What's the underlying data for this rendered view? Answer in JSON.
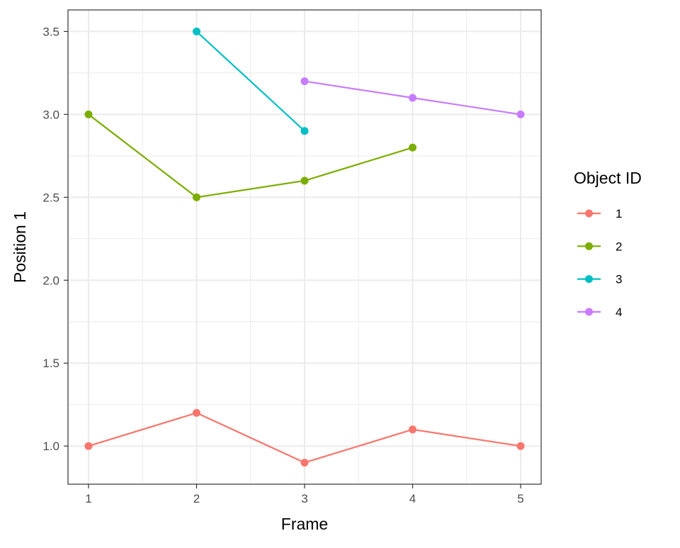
{
  "chart_data": {
    "type": "line",
    "xlabel": "Frame",
    "ylabel": "Position 1",
    "xlim": [
      0.81,
      5.19
    ],
    "ylim": [
      0.77,
      3.63
    ],
    "x_ticks": [
      1,
      2,
      3,
      4,
      5
    ],
    "y_ticks": [
      1.0,
      1.5,
      2.0,
      2.5,
      3.0,
      3.5
    ],
    "x_tick_labels": [
      "1",
      "2",
      "3",
      "4",
      "5"
    ],
    "y_tick_labels": [
      "1.0",
      "1.5",
      "2.0",
      "2.5",
      "3.0",
      "3.5"
    ],
    "grid": true,
    "legend_position": "right",
    "legend_title": "Object ID",
    "series": [
      {
        "name": "1",
        "color": "#F8766D",
        "x": [
          1,
          2,
          3,
          4,
          5
        ],
        "y": [
          1.0,
          1.2,
          0.9,
          1.1,
          1.0
        ]
      },
      {
        "name": "2",
        "color": "#7CAE00",
        "x": [
          1,
          2,
          3,
          4
        ],
        "y": [
          3.0,
          2.5,
          2.6,
          2.8
        ]
      },
      {
        "name": "3",
        "color": "#00BFC4",
        "x": [
          2,
          3
        ],
        "y": [
          3.5,
          2.9
        ]
      },
      {
        "name": "4",
        "color": "#C77CFF",
        "x": [
          3,
          4,
          5
        ],
        "y": [
          3.2,
          3.1,
          3.0
        ]
      }
    ]
  }
}
